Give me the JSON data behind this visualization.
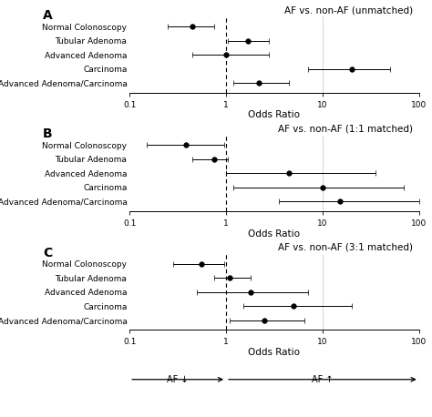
{
  "panels": [
    {
      "label": "A",
      "title": "AF vs. non-AF (unmatched)",
      "categories": [
        "Normal Colonoscopy",
        "Tubular Adenoma",
        "Advanced Adenoma",
        "Carcinoma",
        "Advanced Adenoma/Carcinoma"
      ],
      "or": [
        0.45,
        1.7,
        1.0,
        20.0,
        2.2
      ],
      "ci_low": [
        0.25,
        1.05,
        0.45,
        7.0,
        1.2
      ],
      "ci_high": [
        0.75,
        2.8,
        2.8,
        50.0,
        4.5
      ]
    },
    {
      "label": "B",
      "title": "AF vs. non-AF (1:1 matched)",
      "categories": [
        "Normal Colonoscopy",
        "Tubular Adenoma",
        "Advanced Adenoma",
        "Carcinoma",
        "Advanced Adenoma/Carcinoma"
      ],
      "or": [
        0.38,
        0.75,
        4.5,
        10.0,
        15.0
      ],
      "ci_low": [
        0.15,
        0.45,
        1.0,
        1.2,
        3.5
      ],
      "ci_high": [
        0.95,
        1.05,
        35.0,
        70.0,
        100.0
      ]
    },
    {
      "label": "C",
      "title": "AF vs. non-AF (3:1 matched)",
      "categories": [
        "Normal Colonoscopy",
        "Tubular Adenoma",
        "Advanced Adenoma",
        "Carcinoma",
        "Advanced Adenoma/Carcinoma"
      ],
      "or": [
        0.55,
        1.1,
        1.8,
        5.0,
        2.5
      ],
      "ci_low": [
        0.28,
        0.75,
        0.5,
        1.5,
        1.1
      ],
      "ci_high": [
        0.95,
        1.8,
        7.0,
        20.0,
        6.5
      ]
    }
  ],
  "xlim": [
    0.1,
    100
  ],
  "xticks": [
    0.1,
    1,
    10,
    100
  ],
  "xlabel": "Odds Ratio",
  "dashed_line": 1.0,
  "dot_color": "black",
  "dot_size": 4,
  "background_color": "white",
  "panel_label_fontsize": 10,
  "title_fontsize": 7.5,
  "category_fontsize": 6.5,
  "tick_fontsize": 6.5,
  "xlabel_fontsize": 7.5
}
